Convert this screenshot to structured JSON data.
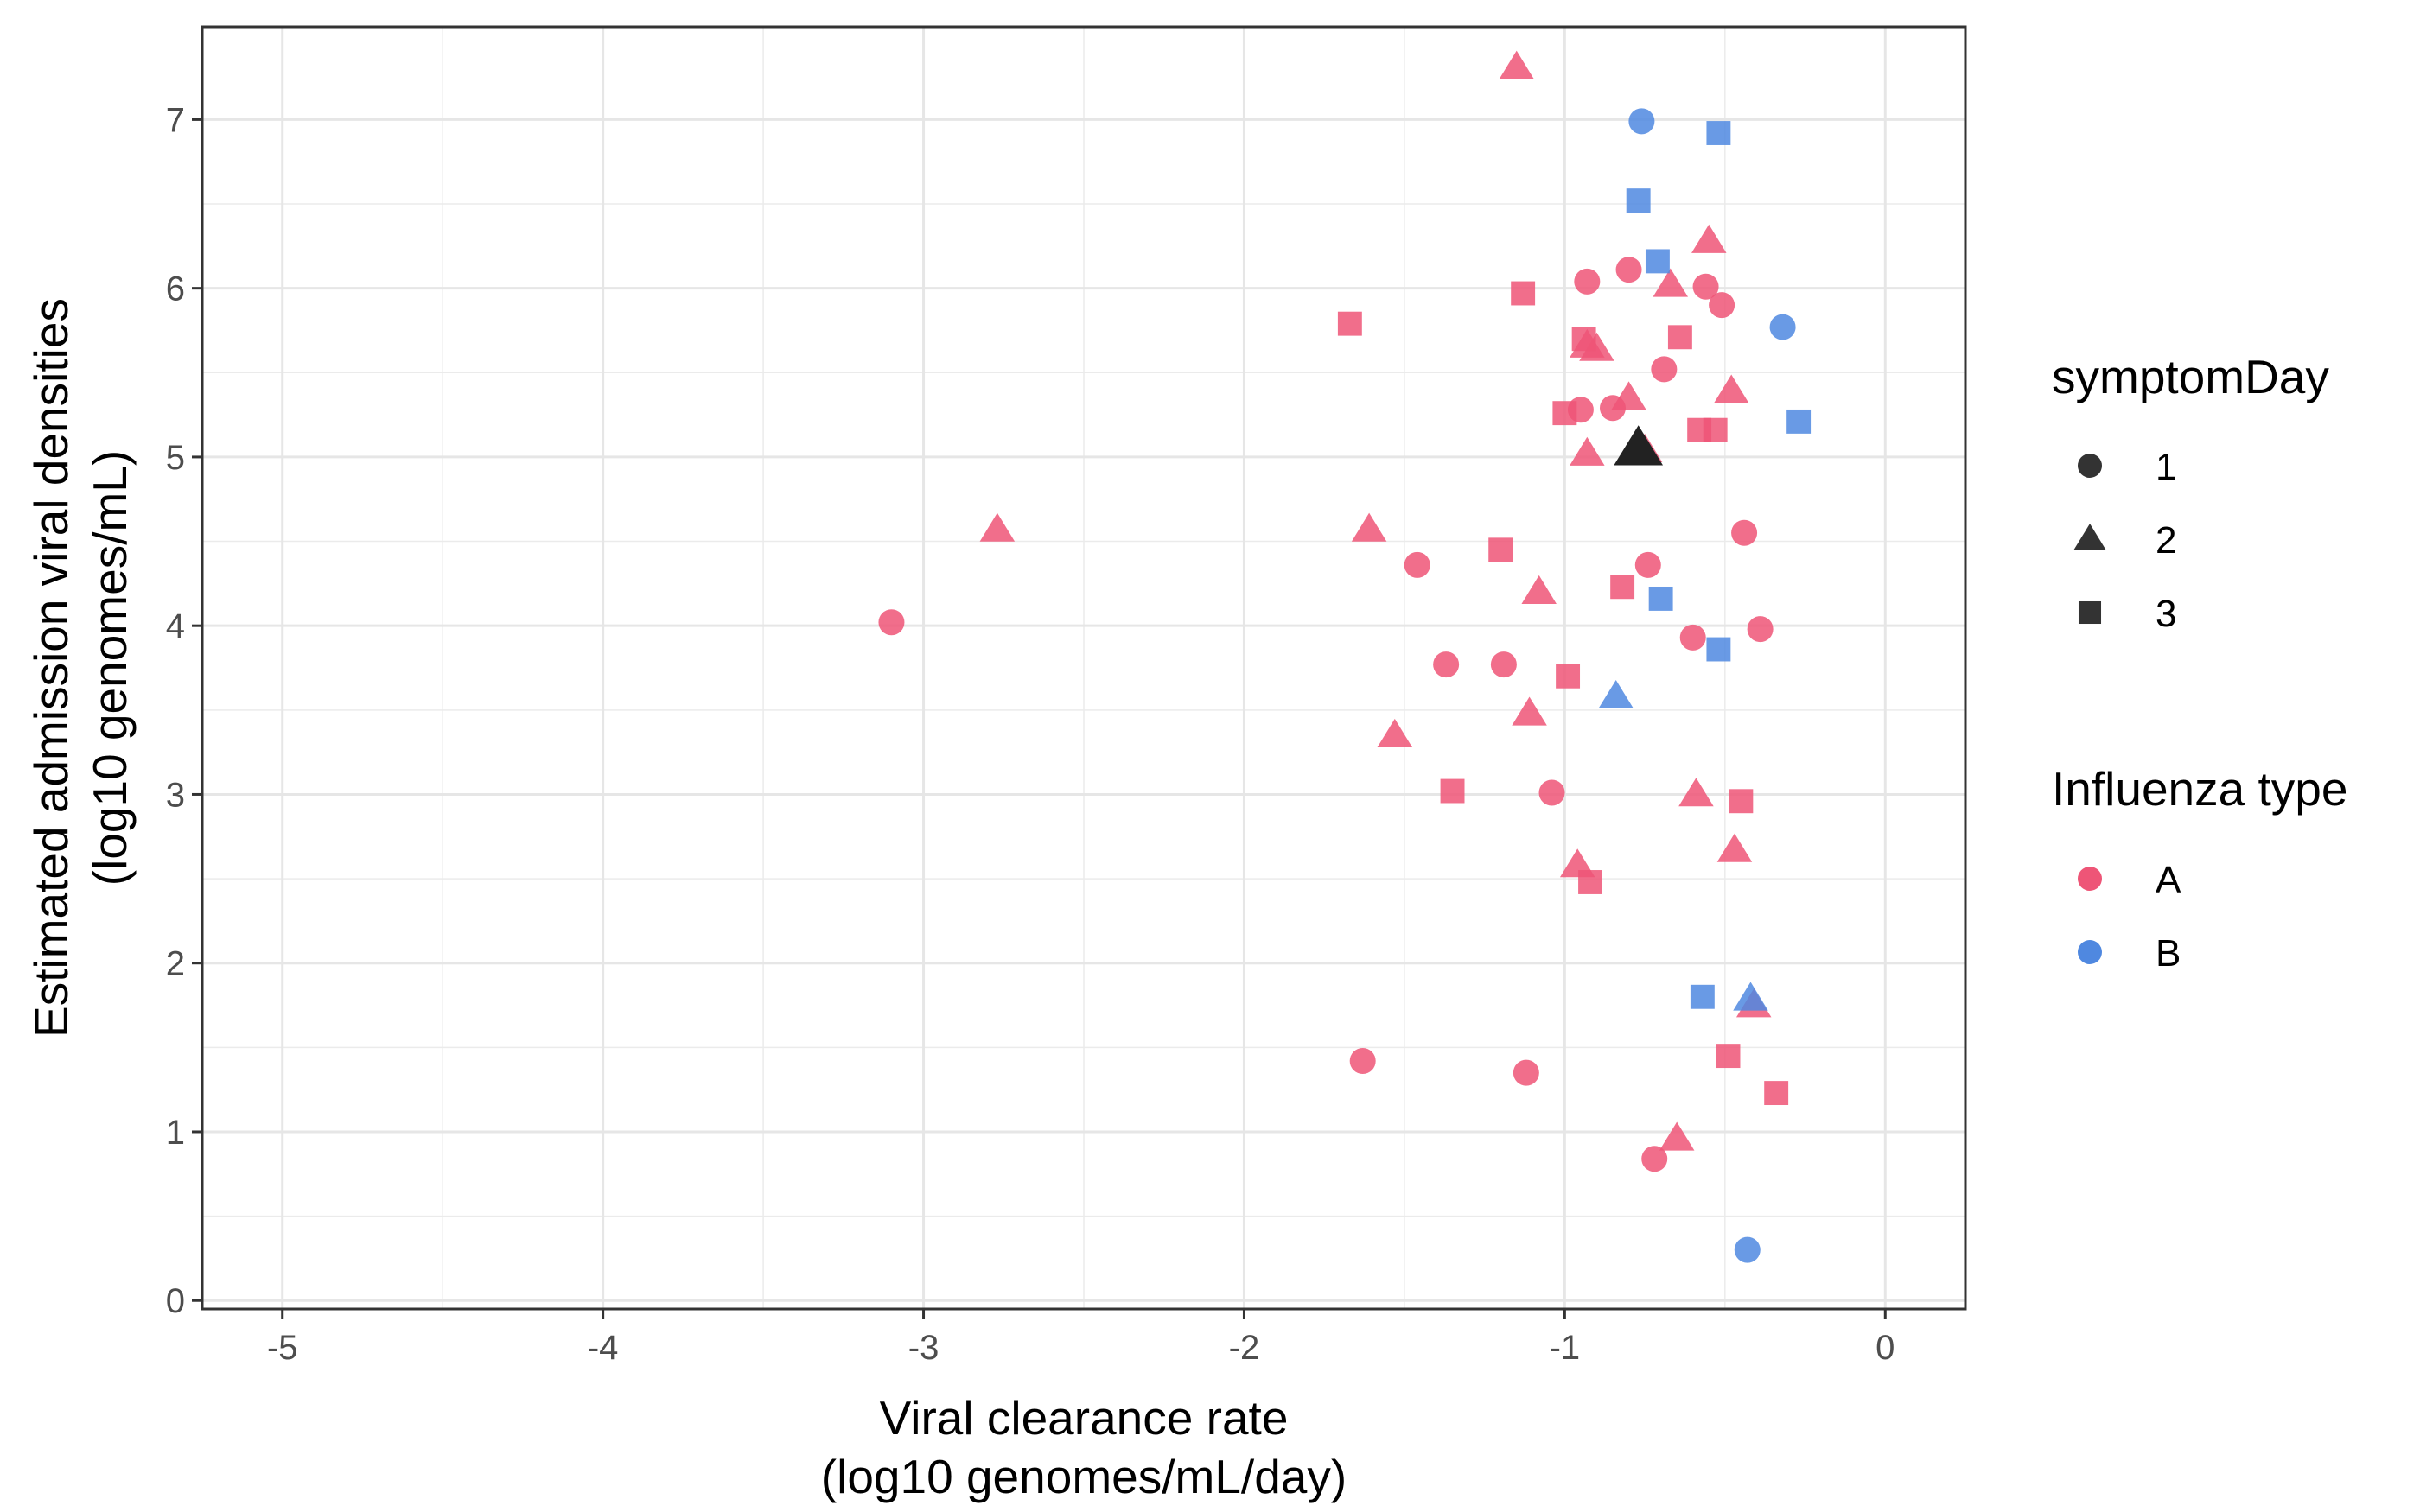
{
  "chart_data": {
    "type": "scatter",
    "title": "",
    "xlabel_lines": [
      "Viral clearance rate",
      "(log10 genomes/mL/day)"
    ],
    "ylabel_lines": [
      "Estimated admission viral densities",
      "(log10 genomes/mL)"
    ],
    "xlim": [
      -5.25,
      0.25
    ],
    "ylim": [
      -0.05,
      7.55
    ],
    "x_ticks": [
      -5,
      -4,
      -3,
      -2,
      -1,
      0
    ],
    "y_ticks": [
      0,
      1,
      2,
      3,
      4,
      5,
      6,
      7
    ],
    "x_tick_labels": [
      "-5",
      "-4",
      "-3",
      "-2",
      "-1",
      "0"
    ],
    "y_tick_labels": [
      "0",
      "1",
      "2",
      "3",
      "4",
      "5",
      "6",
      "7"
    ],
    "grid": true,
    "legend_position": "right",
    "shape_legend": {
      "title": "symptomDay",
      "items": [
        {
          "label": "1",
          "shape": "circle"
        },
        {
          "label": "2",
          "shape": "triangle"
        },
        {
          "label": "3",
          "shape": "square"
        }
      ]
    },
    "color_legend": {
      "title": "Influenza type",
      "items": [
        {
          "label": "A",
          "color": "#ee5577"
        },
        {
          "label": "B",
          "color": "#4f88e0"
        }
      ]
    },
    "highlight": {
      "x": -0.77,
      "y": 5.05,
      "shape": "triangle",
      "color": "#222222"
    },
    "points": [
      {
        "x": -3.1,
        "y": 4.02,
        "shape": "circle",
        "type": "A"
      },
      {
        "x": -1.63,
        "y": 1.42,
        "shape": "circle",
        "type": "A"
      },
      {
        "x": -1.46,
        "y": 4.36,
        "shape": "circle",
        "type": "A"
      },
      {
        "x": -1.37,
        "y": 3.77,
        "shape": "circle",
        "type": "A"
      },
      {
        "x": -1.19,
        "y": 3.77,
        "shape": "circle",
        "type": "A"
      },
      {
        "x": -1.12,
        "y": 1.35,
        "shape": "circle",
        "type": "A"
      },
      {
        "x": -1.04,
        "y": 3.01,
        "shape": "circle",
        "type": "A"
      },
      {
        "x": -0.95,
        "y": 5.28,
        "shape": "circle",
        "type": "A"
      },
      {
        "x": -0.93,
        "y": 6.04,
        "shape": "circle",
        "type": "A"
      },
      {
        "x": -0.85,
        "y": 5.29,
        "shape": "circle",
        "type": "A"
      },
      {
        "x": -0.8,
        "y": 6.11,
        "shape": "circle",
        "type": "A"
      },
      {
        "x": -0.74,
        "y": 4.36,
        "shape": "circle",
        "type": "A"
      },
      {
        "x": -0.72,
        "y": 0.84,
        "shape": "circle",
        "type": "A"
      },
      {
        "x": -0.69,
        "y": 5.52,
        "shape": "circle",
        "type": "A"
      },
      {
        "x": -0.6,
        "y": 3.93,
        "shape": "circle",
        "type": "A"
      },
      {
        "x": -0.56,
        "y": 6.01,
        "shape": "circle",
        "type": "A"
      },
      {
        "x": -0.51,
        "y": 5.9,
        "shape": "circle",
        "type": "A"
      },
      {
        "x": -0.44,
        "y": 4.55,
        "shape": "circle",
        "type": "A"
      },
      {
        "x": -0.39,
        "y": 3.98,
        "shape": "circle",
        "type": "A"
      },
      {
        "x": -0.76,
        "y": 6.99,
        "shape": "circle",
        "type": "B"
      },
      {
        "x": -0.32,
        "y": 5.77,
        "shape": "circle",
        "type": "B"
      },
      {
        "x": -0.43,
        "y": 0.3,
        "shape": "circle",
        "type": "B"
      },
      {
        "x": -1.15,
        "y": 7.31,
        "shape": "triangle",
        "type": "A"
      },
      {
        "x": -2.77,
        "y": 4.57,
        "shape": "triangle",
        "type": "A"
      },
      {
        "x": -1.61,
        "y": 4.57,
        "shape": "triangle",
        "type": "A"
      },
      {
        "x": -1.53,
        "y": 3.35,
        "shape": "triangle",
        "type": "A"
      },
      {
        "x": -1.08,
        "y": 4.2,
        "shape": "triangle",
        "type": "A"
      },
      {
        "x": -1.11,
        "y": 3.48,
        "shape": "triangle",
        "type": "A"
      },
      {
        "x": -0.96,
        "y": 2.58,
        "shape": "triangle",
        "type": "A"
      },
      {
        "x": -0.93,
        "y": 5.66,
        "shape": "triangle",
        "type": "A"
      },
      {
        "x": -0.9,
        "y": 5.64,
        "shape": "triangle",
        "type": "A"
      },
      {
        "x": -0.93,
        "y": 5.02,
        "shape": "triangle",
        "type": "A"
      },
      {
        "x": -0.8,
        "y": 5.35,
        "shape": "triangle",
        "type": "A"
      },
      {
        "x": -0.75,
        "y": 5.04,
        "shape": "triangle",
        "type": "A"
      },
      {
        "x": -0.67,
        "y": 6.02,
        "shape": "triangle",
        "type": "A"
      },
      {
        "x": -0.65,
        "y": 0.96,
        "shape": "triangle",
        "type": "A"
      },
      {
        "x": -0.59,
        "y": 3.0,
        "shape": "triangle",
        "type": "A"
      },
      {
        "x": -0.55,
        "y": 6.28,
        "shape": "triangle",
        "type": "A"
      },
      {
        "x": -0.48,
        "y": 5.39,
        "shape": "triangle",
        "type": "A"
      },
      {
        "x": -0.47,
        "y": 2.67,
        "shape": "triangle",
        "type": "A"
      },
      {
        "x": -0.41,
        "y": 1.75,
        "shape": "triangle",
        "type": "A"
      },
      {
        "x": -0.84,
        "y": 3.58,
        "shape": "triangle",
        "type": "B"
      },
      {
        "x": -0.42,
        "y": 1.79,
        "shape": "triangle",
        "type": "B"
      },
      {
        "x": -1.67,
        "y": 5.79,
        "shape": "square",
        "type": "A"
      },
      {
        "x": -1.35,
        "y": 3.02,
        "shape": "square",
        "type": "A"
      },
      {
        "x": -1.2,
        "y": 4.45,
        "shape": "square",
        "type": "A"
      },
      {
        "x": -1.13,
        "y": 5.97,
        "shape": "square",
        "type": "A"
      },
      {
        "x": -1.0,
        "y": 5.26,
        "shape": "square",
        "type": "A"
      },
      {
        "x": -0.99,
        "y": 3.7,
        "shape": "square",
        "type": "A"
      },
      {
        "x": -0.94,
        "y": 5.7,
        "shape": "square",
        "type": "A"
      },
      {
        "x": -0.92,
        "y": 2.48,
        "shape": "square",
        "type": "A"
      },
      {
        "x": -0.82,
        "y": 4.23,
        "shape": "square",
        "type": "A"
      },
      {
        "x": -0.64,
        "y": 5.71,
        "shape": "square",
        "type": "A"
      },
      {
        "x": -0.58,
        "y": 5.16,
        "shape": "square",
        "type": "A"
      },
      {
        "x": -0.53,
        "y": 5.16,
        "shape": "square",
        "type": "A"
      },
      {
        "x": -0.49,
        "y": 1.45,
        "shape": "square",
        "type": "A"
      },
      {
        "x": -0.45,
        "y": 2.96,
        "shape": "square",
        "type": "A"
      },
      {
        "x": -0.34,
        "y": 1.23,
        "shape": "square",
        "type": "A"
      },
      {
        "x": -0.52,
        "y": 6.92,
        "shape": "square",
        "type": "B"
      },
      {
        "x": -0.77,
        "y": 6.52,
        "shape": "square",
        "type": "B"
      },
      {
        "x": -0.71,
        "y": 6.16,
        "shape": "square",
        "type": "B"
      },
      {
        "x": -0.27,
        "y": 5.21,
        "shape": "square",
        "type": "B"
      },
      {
        "x": -0.7,
        "y": 4.16,
        "shape": "square",
        "type": "B"
      },
      {
        "x": -0.52,
        "y": 3.86,
        "shape": "square",
        "type": "B"
      },
      {
        "x": -0.57,
        "y": 1.8,
        "shape": "square",
        "type": "B"
      }
    ]
  }
}
